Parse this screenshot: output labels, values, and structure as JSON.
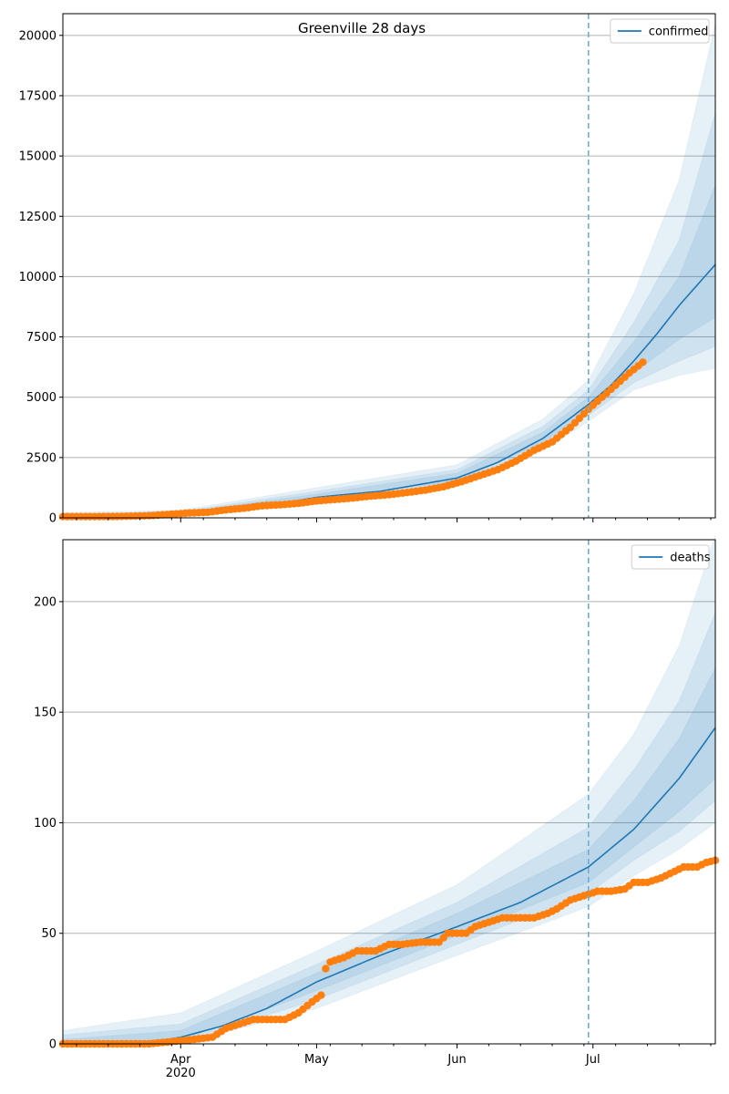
{
  "figure": {
    "title": "Greenville 28 days"
  },
  "colors": {
    "model": "#1f77b4",
    "observed": "#ff7f0e",
    "band": "#1f77b4",
    "grid": "#b0b0b0",
    "axis": "#000000",
    "forecast_line": "#6baed6"
  },
  "chart_data": [
    {
      "type": "line",
      "id": "confirmed",
      "title": "Greenville 28 days",
      "legend": {
        "label": "confirmed",
        "placement": "top-right"
      },
      "x_range": [
        "2020-03-06",
        "2020-07-28"
      ],
      "forecast_start": "2020-06-30",
      "ylim": [
        0,
        20900
      ],
      "yticks": [
        0,
        2500,
        5000,
        7500,
        10000,
        12500,
        15000,
        17500,
        20000
      ],
      "ytick_labels": [
        "0",
        "2500",
        "5000",
        "7500",
        "10000",
        "12500",
        "15000",
        "17500",
        "20000"
      ],
      "xtick_labels": [
        "Apr\n2020",
        "May",
        "Jun",
        "Jul"
      ],
      "grid": "y",
      "model": [
        [
          "2020-03-06",
          60
        ],
        [
          "2020-03-15",
          65
        ],
        [
          "2020-03-25",
          95
        ],
        [
          "2020-04-01",
          170
        ],
        [
          "2020-04-10",
          300
        ],
        [
          "2020-04-20",
          500
        ],
        [
          "2020-05-01",
          850
        ],
        [
          "2020-05-15",
          1100
        ],
        [
          "2020-06-01",
          1650
        ],
        [
          "2020-06-10",
          2300
        ],
        [
          "2020-06-20",
          3300
        ],
        [
          "2020-06-30",
          4700
        ],
        [
          "2020-07-05",
          5500
        ],
        [
          "2020-07-10",
          6500
        ],
        [
          "2020-07-15",
          7600
        ],
        [
          "2020-07-20",
          8800
        ],
        [
          "2020-07-28",
          10500
        ]
      ],
      "bands": [
        {
          "level": "outer",
          "points": [
            [
              "2020-03-06",
              40,
              220
            ],
            [
              "2020-04-01",
              110,
              320
            ],
            [
              "2020-05-01",
              600,
              1250
            ],
            [
              "2020-06-01",
              1300,
              2200
            ],
            [
              "2020-06-20",
              2800,
              4100
            ],
            [
              "2020-06-30",
              4000,
              5700
            ],
            [
              "2020-07-10",
              5300,
              9300
            ],
            [
              "2020-07-20",
              5900,
              14000
            ],
            [
              "2020-07-28",
              6200,
              20500
            ]
          ]
        },
        {
          "level": "mid",
          "points": [
            [
              "2020-03-06",
              45,
              150
            ],
            [
              "2020-04-01",
              130,
              260
            ],
            [
              "2020-05-01",
              680,
              1100
            ],
            [
              "2020-06-01",
              1420,
              2000
            ],
            [
              "2020-06-20",
              3000,
              3800
            ],
            [
              "2020-06-30",
              4250,
              5300
            ],
            [
              "2020-07-10",
              5600,
              8100
            ],
            [
              "2020-07-20",
              6500,
              11500
            ],
            [
              "2020-07-28",
              7100,
              16800
            ]
          ]
        },
        {
          "level": "inner",
          "points": [
            [
              "2020-03-06",
              50,
              110
            ],
            [
              "2020-04-01",
              145,
              220
            ],
            [
              "2020-05-01",
              750,
              980
            ],
            [
              "2020-06-01",
              1530,
              1850
            ],
            [
              "2020-06-20",
              3120,
              3550
            ],
            [
              "2020-06-30",
              4450,
              5000
            ],
            [
              "2020-07-10",
              6000,
              7300
            ],
            [
              "2020-07-20",
              7400,
              10000
            ],
            [
              "2020-07-28",
              8300,
              13800
            ]
          ]
        }
      ],
      "observed": [
        [
          "2020-03-06",
          50
        ],
        [
          "2020-03-10",
          50
        ],
        [
          "2020-03-14",
          50
        ],
        [
          "2020-03-18",
          55
        ],
        [
          "2020-03-22",
          70
        ],
        [
          "2020-03-26",
          100
        ],
        [
          "2020-03-30",
          150
        ],
        [
          "2020-04-03",
          200
        ],
        [
          "2020-04-07",
          230
        ],
        [
          "2020-04-11",
          330
        ],
        [
          "2020-04-15",
          400
        ],
        [
          "2020-04-19",
          500
        ],
        [
          "2020-04-23",
          540
        ],
        [
          "2020-04-27",
          600
        ],
        [
          "2020-05-01",
          700
        ],
        [
          "2020-05-05",
          760
        ],
        [
          "2020-05-09",
          820
        ],
        [
          "2020-05-13",
          900
        ],
        [
          "2020-05-17",
          960
        ],
        [
          "2020-05-21",
          1050
        ],
        [
          "2020-05-25",
          1150
        ],
        [
          "2020-05-29",
          1290
        ],
        [
          "2020-06-02",
          1500
        ],
        [
          "2020-06-06",
          1750
        ],
        [
          "2020-06-10",
          2000
        ],
        [
          "2020-06-14",
          2350
        ],
        [
          "2020-06-18",
          2800
        ],
        [
          "2020-06-22",
          3150
        ],
        [
          "2020-06-26",
          3750
        ],
        [
          "2020-06-30",
          4500
        ],
        [
          "2020-07-03",
          5000
        ],
        [
          "2020-07-06",
          5500
        ],
        [
          "2020-07-09",
          6000
        ],
        [
          "2020-07-12",
          6450
        ]
      ]
    },
    {
      "type": "line",
      "id": "deaths",
      "title": "",
      "legend": {
        "label": "deaths",
        "placement": "top-right"
      },
      "x_range": [
        "2020-03-06",
        "2020-07-28"
      ],
      "forecast_start": "2020-06-30",
      "ylim": [
        0,
        228
      ],
      "yticks": [
        0,
        50,
        100,
        150,
        200
      ],
      "ytick_labels": [
        "0",
        "50",
        "100",
        "150",
        "200"
      ],
      "xtick_labels": [
        "Apr\n2020",
        "May",
        "Jun",
        "Jul"
      ],
      "grid": "y",
      "model": [
        [
          "2020-03-06",
          0
        ],
        [
          "2020-03-25",
          0.5
        ],
        [
          "2020-04-01",
          3
        ],
        [
          "2020-04-10",
          8
        ],
        [
          "2020-04-20",
          16
        ],
        [
          "2020-05-01",
          28
        ],
        [
          "2020-05-15",
          40
        ],
        [
          "2020-06-01",
          53
        ],
        [
          "2020-06-15",
          64
        ],
        [
          "2020-06-30",
          80
        ],
        [
          "2020-07-10",
          97
        ],
        [
          "2020-07-20",
          120
        ],
        [
          "2020-07-28",
          143
        ]
      ],
      "bands": [
        {
          "level": "outer",
          "points": [
            [
              "2020-03-06",
              0,
              6
            ],
            [
              "2020-04-01",
              0,
              14
            ],
            [
              "2020-05-01",
              16,
              42
            ],
            [
              "2020-06-01",
              40,
              72
            ],
            [
              "2020-06-30",
              62,
              113
            ],
            [
              "2020-07-10",
              76,
              140
            ],
            [
              "2020-07-20",
              88,
              180
            ],
            [
              "2020-07-28",
              100,
              230
            ]
          ]
        },
        {
          "level": "mid",
          "points": [
            [
              "2020-03-06",
              0,
              4
            ],
            [
              "2020-04-01",
              0.5,
              9
            ],
            [
              "2020-05-01",
              20,
              36
            ],
            [
              "2020-06-01",
              45,
              64
            ],
            [
              "2020-06-30",
              68,
              98
            ],
            [
              "2020-07-10",
              83,
              124
            ],
            [
              "2020-07-20",
              96,
              155
            ],
            [
              "2020-07-28",
              110,
              195
            ]
          ]
        },
        {
          "level": "inner",
          "points": [
            [
              "2020-03-06",
              0,
              2
            ],
            [
              "2020-04-01",
              1.5,
              6
            ],
            [
              "2020-05-01",
              24,
              32
            ],
            [
              "2020-06-01",
              49,
              59
            ],
            [
              "2020-06-30",
              73,
              88
            ],
            [
              "2020-07-10",
              89,
              110
            ],
            [
              "2020-07-20",
              105,
              138
            ],
            [
              "2020-07-28",
              120,
              170
            ]
          ]
        }
      ],
      "observed": [
        [
          "2020-03-06",
          0
        ],
        [
          "2020-03-15",
          0
        ],
        [
          "2020-03-25",
          0
        ],
        [
          "2020-03-30",
          1
        ],
        [
          "2020-04-04",
          2
        ],
        [
          "2020-04-08",
          3
        ],
        [
          "2020-04-11",
          7
        ],
        [
          "2020-04-14",
          9
        ],
        [
          "2020-04-17",
          11
        ],
        [
          "2020-04-24",
          11
        ],
        [
          "2020-04-27",
          14
        ],
        [
          "2020-04-30",
          19
        ],
        [
          "2020-05-02",
          22
        ],
        [
          "2020-05-03",
          34
        ],
        [
          "2020-05-04",
          37
        ],
        [
          "2020-05-07",
          39
        ],
        [
          "2020-05-10",
          42
        ],
        [
          "2020-05-14",
          42
        ],
        [
          "2020-05-17",
          45
        ],
        [
          "2020-05-20",
          45
        ],
        [
          "2020-05-24",
          46
        ],
        [
          "2020-05-28",
          46
        ],
        [
          "2020-05-30",
          50
        ],
        [
          "2020-06-03",
          50
        ],
        [
          "2020-06-05",
          53
        ],
        [
          "2020-06-08",
          55
        ],
        [
          "2020-06-11",
          57
        ],
        [
          "2020-06-15",
          57
        ],
        [
          "2020-06-18",
          57
        ],
        [
          "2020-06-21",
          59
        ],
        [
          "2020-06-23",
          61
        ],
        [
          "2020-06-26",
          65
        ],
        [
          "2020-06-29",
          67
        ],
        [
          "2020-07-02",
          69
        ],
        [
          "2020-07-05",
          69
        ],
        [
          "2020-07-08",
          70
        ],
        [
          "2020-07-10",
          73
        ],
        [
          "2020-07-13",
          73
        ],
        [
          "2020-07-16",
          75
        ],
        [
          "2020-07-18",
          77
        ],
        [
          "2020-07-21",
          80
        ],
        [
          "2020-07-24",
          80
        ],
        [
          "2020-07-26",
          82
        ],
        [
          "2020-07-28",
          83
        ]
      ]
    }
  ]
}
